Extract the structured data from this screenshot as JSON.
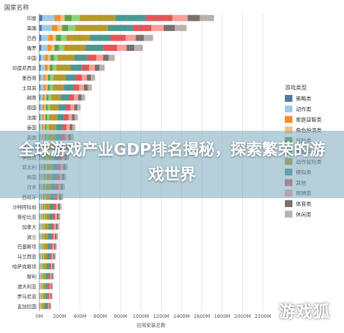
{
  "chart_data": {
    "type": "bar",
    "stacked": true,
    "orientation": "horizontal",
    "y_header": "国家名称",
    "xlabel": "应用安装总数",
    "xlim": [
      0,
      2200
    ],
    "x_ticks": [
      "0M",
      "200M",
      "400M",
      "600M",
      "800M",
      "1000M",
      "1200M",
      "1400M",
      "1600M",
      "1800M",
      "2000M",
      "2200M"
    ],
    "grid": true,
    "legend": {
      "title": "游戏类型",
      "placement": "right"
    },
    "categories": [
      "印度",
      "美国",
      "巴西",
      "俄罗",
      "中国",
      "印度尼西亚",
      "墨西哥",
      "土耳其",
      "越南",
      "德国",
      "法国",
      "泰国",
      "英国",
      "意大利",
      "伊拉克",
      "亚太利",
      "韩国",
      "日本",
      "西班牙",
      "沙特阿拉伯",
      "哥伦比亚",
      "加拿大",
      "波兰",
      "巴基斯坦",
      "马兰西亚",
      "哈萨克斯坦",
      "智利",
      "澳大利亚",
      "罗马尼亚",
      "孟加拉国"
    ],
    "series": [
      {
        "name": "策略类",
        "color": "#4e79a7",
        "values": [
          30,
          25,
          20,
          20,
          15,
          15,
          12,
          12,
          10,
          10,
          10,
          8,
          8,
          8,
          7,
          7,
          7,
          7,
          6,
          6,
          6,
          5,
          5,
          5,
          5,
          4,
          4,
          4,
          4,
          3
        ]
      },
      {
        "name": "动作类",
        "color": "#a0cbe8",
        "values": [
          120,
          100,
          70,
          60,
          40,
          40,
          30,
          30,
          25,
          22,
          20,
          20,
          20,
          18,
          18,
          16,
          16,
          15,
          14,
          13,
          12,
          12,
          11,
          10,
          10,
          9,
          9,
          8,
          8,
          7
        ]
      },
      {
        "name": "家庭益智类",
        "color": "#f28e2b",
        "values": [
          60,
          55,
          45,
          40,
          30,
          28,
          24,
          22,
          20,
          18,
          17,
          16,
          15,
          14,
          13,
          12,
          12,
          11,
          10,
          10,
          9,
          9,
          8,
          8,
          7,
          7,
          6,
          6,
          6,
          5
        ]
      },
      {
        "name": "角色扮演类",
        "color": "#ffbe7d",
        "values": [
          40,
          45,
          30,
          30,
          25,
          20,
          18,
          18,
          15,
          14,
          13,
          12,
          12,
          11,
          10,
          10,
          10,
          9,
          9,
          8,
          8,
          7,
          7,
          7,
          6,
          6,
          5,
          5,
          5,
          4
        ]
      },
      {
        "name": "冒险类",
        "color": "#59a14f",
        "values": [
          70,
          60,
          50,
          45,
          35,
          30,
          26,
          25,
          22,
          20,
          18,
          17,
          16,
          15,
          14,
          13,
          12,
          12,
          11,
          10,
          10,
          9,
          9,
          8,
          8,
          7,
          7,
          6,
          6,
          5
        ]
      },
      {
        "name": "竞速类",
        "color": "#8cd17d",
        "values": [
          80,
          70,
          55,
          50,
          38,
          35,
          30,
          28,
          24,
          22,
          20,
          19,
          18,
          17,
          16,
          15,
          14,
          13,
          12,
          11,
          11,
          10,
          10,
          9,
          9,
          8,
          8,
          7,
          7,
          6
        ]
      },
      {
        "name": "动作冒险类",
        "color": "#b6992d",
        "values": [
          350,
          320,
          230,
          210,
          160,
          140,
          120,
          110,
          95,
          85,
          80,
          75,
          70,
          65,
          62,
          58,
          55,
          52,
          48,
          45,
          42,
          40,
          38,
          35,
          33,
          31,
          29,
          27,
          26,
          24
        ]
      },
      {
        "name": "模拟类",
        "color": "#499894",
        "values": [
          300,
          250,
          200,
          180,
          130,
          110,
          95,
          90,
          80,
          70,
          65,
          60,
          58,
          54,
          50,
          47,
          45,
          42,
          40,
          37,
          35,
          33,
          31,
          29,
          27,
          26,
          24,
          23,
          22,
          20
        ]
      },
      {
        "name": "其他",
        "color": "#e15759",
        "values": [
          260,
          180,
          150,
          130,
          90,
          75,
          65,
          60,
          52,
          48,
          45,
          42,
          40,
          37,
          35,
          33,
          31,
          29,
          27,
          25,
          24,
          22,
          21,
          20,
          19,
          18,
          17,
          16,
          15,
          14
        ]
      },
      {
        "name": "棋牌类",
        "color": "#ff9d9a",
        "values": [
          150,
          120,
          100,
          95,
          65,
          55,
          48,
          45,
          40,
          36,
          34,
          32,
          30,
          28,
          26,
          25,
          23,
          22,
          21,
          20,
          18,
          17,
          16,
          15,
          14,
          14,
          13,
          12,
          12,
          11
        ]
      },
      {
        "name": "体育类",
        "color": "#79706e",
        "values": [
          120,
          110,
          80,
          75,
          55,
          45,
          40,
          38,
          33,
          30,
          28,
          26,
          25,
          23,
          22,
          21,
          20,
          19,
          18,
          17,
          16,
          15,
          14,
          13,
          12,
          12,
          11,
          10,
          10,
          9
        ]
      },
      {
        "name": "休闲类",
        "color": "#bab0ac",
        "values": [
          140,
          115,
          90,
          85,
          60,
          50,
          42,
          40,
          35,
          32,
          30,
          28,
          26,
          24,
          23,
          22,
          21,
          20,
          19,
          18,
          17,
          16,
          15,
          14,
          13,
          12,
          12,
          11,
          10,
          10
        ]
      }
    ]
  },
  "overlay": {
    "headline": "全球游戏产业GDP排名揭秘，探索繁荣的游戏世界",
    "watermark": "游戏狐"
  }
}
